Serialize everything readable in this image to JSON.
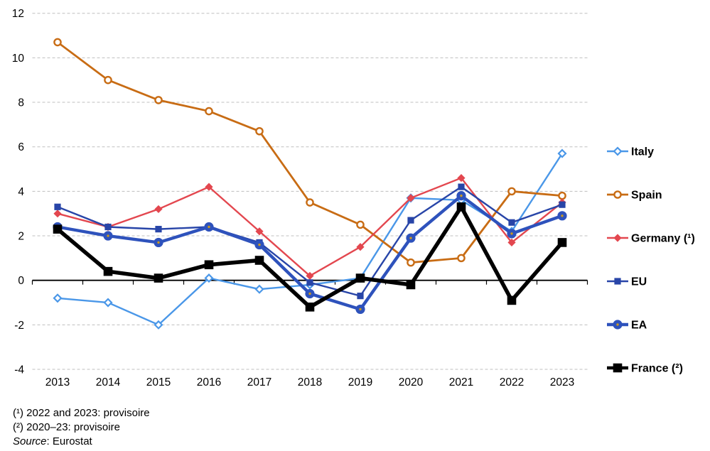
{
  "chart_data": {
    "type": "line",
    "title": "",
    "xlabel": "",
    "ylabel": "",
    "categories": [
      "2013",
      "2014",
      "2015",
      "2016",
      "2017",
      "2018",
      "2019",
      "2020",
      "2021",
      "2022",
      "2023"
    ],
    "y_ticks": [
      12,
      10,
      8,
      6,
      4,
      2,
      0,
      -2,
      -4
    ],
    "ylim": [
      -4,
      12
    ],
    "grid": "horizontal-dashed",
    "legend_position": "right",
    "gridline_color": "#bfbfbf",
    "axis_color": "#000000",
    "series": [
      {
        "name": "Italy",
        "slug": "italy",
        "color": "#4a97e8",
        "marker": "open-diamond",
        "line_width": 2.4,
        "values": [
          -0.8,
          -1.0,
          -2.0,
          0.1,
          -0.4,
          -0.2,
          0.1,
          3.7,
          3.6,
          2.2,
          5.7
        ]
      },
      {
        "name": "Spain",
        "slug": "spain",
        "color": "#c86c14",
        "marker": "open-circle",
        "line_width": 2.8,
        "values": [
          10.7,
          9.0,
          8.1,
          7.6,
          6.7,
          3.5,
          2.5,
          0.8,
          1.0,
          4.0,
          3.8
        ]
      },
      {
        "name": "Germany (¹)",
        "slug": "germany",
        "color": "#e3474f",
        "marker": "diamond",
        "line_width": 2.4,
        "values": [
          3.0,
          2.4,
          3.2,
          4.2,
          2.2,
          0.2,
          1.5,
          3.7,
          4.6,
          1.7,
          3.5
        ]
      },
      {
        "name": "EU",
        "slug": "eu",
        "color": "#2845a8",
        "marker": "square",
        "line_width": 2.4,
        "values": [
          3.3,
          2.4,
          2.3,
          2.4,
          1.7,
          -0.1,
          -0.7,
          2.7,
          4.2,
          2.6,
          3.4
        ]
      },
      {
        "name": "EA",
        "slug": "ea",
        "color": "#2e52bc",
        "marker": "dot-circle",
        "dot_color": "#c89820",
        "line_width": 4.4,
        "values": [
          2.4,
          2.0,
          1.7,
          2.4,
          1.6,
          -0.6,
          -1.3,
          1.9,
          3.8,
          2.1,
          2.9
        ]
      },
      {
        "name": "France (²)",
        "slug": "france",
        "color": "#000000",
        "marker": "big-square",
        "line_width": 5.5,
        "values": [
          2.3,
          0.4,
          0.1,
          0.7,
          0.9,
          -1.2,
          0.1,
          -0.2,
          3.3,
          -0.9,
          1.7
        ]
      }
    ]
  },
  "footnotes": [
    "(¹) 2022 and 2023: provisoire",
    "(²) 2020–23: provisoire"
  ],
  "source": {
    "label": "Source",
    "text": ": Eurostat"
  }
}
